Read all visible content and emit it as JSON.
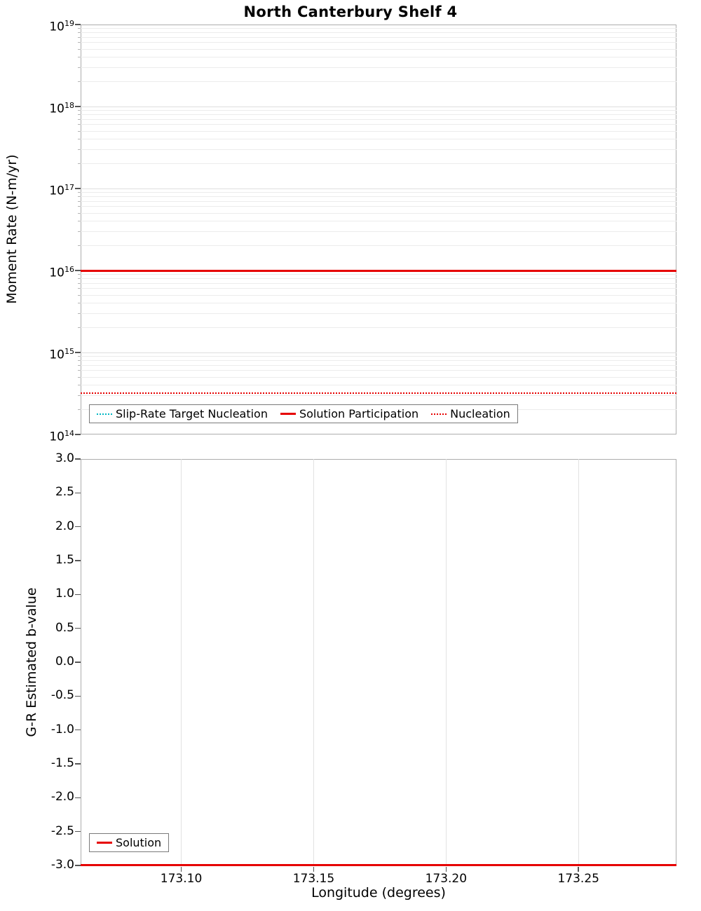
{
  "title": "North Canterbury Shelf 4",
  "colors": {
    "series_red": "#e60000",
    "series_cyan": "#00b7c3",
    "grid_major": "#dedede",
    "grid_minor": "#ececec",
    "axis_border": "#adadad",
    "tick": "#555555"
  },
  "chart_data": [
    {
      "type": "line",
      "title": "North Canterbury Shelf 4",
      "ylabel": "Moment Rate (N-m/yr)",
      "yscale": "log",
      "ylim": [
        100000000000000.0,
        1e+19
      ],
      "ytick_exponents": [
        19,
        18,
        17,
        16,
        15,
        14
      ],
      "xlim": [
        173.062,
        173.287
      ],
      "grid": true,
      "legend_position": "bottom-inside",
      "series": [
        {
          "name": "Slip-Rate Target Nucleation",
          "style": "dotted",
          "color": "#00b7c3",
          "value": 320000000000000.0
        },
        {
          "name": "Solution Participation",
          "style": "solid",
          "color": "#e60000",
          "value": 1e+16
        },
        {
          "name": "Nucleation",
          "style": "dotted",
          "color": "#e60000",
          "value": 320000000000000.0
        }
      ]
    },
    {
      "type": "line",
      "ylabel": "G-R Estimated b-value",
      "xlabel": "Longitude (degrees)",
      "ylim": [
        -3.0,
        3.0
      ],
      "ytick_step": 0.5,
      "xlim": [
        173.062,
        173.287
      ],
      "xticks": [
        173.1,
        173.15,
        173.2,
        173.25
      ],
      "grid": true,
      "legend_position": "bottom-left-inside",
      "series": [
        {
          "name": "Solution",
          "style": "solid",
          "color": "#e60000",
          "value": -3.0
        }
      ]
    }
  ]
}
